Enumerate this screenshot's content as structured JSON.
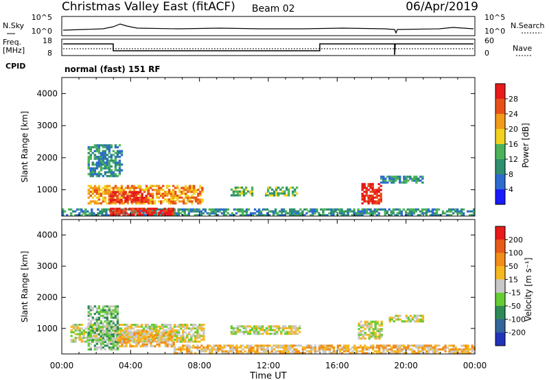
{
  "header": {
    "site": "Christmas Valley East (fitACF)",
    "beam": "Beam 02",
    "date": "06/Apr/2019"
  },
  "sky_panel": {
    "left_label": "N.Sky",
    "right_label": "N.Search",
    "left_ticks": [
      "10^5",
      "10^0"
    ],
    "right_ticks": [
      "10^5",
      "10^0"
    ]
  },
  "freq_panel": {
    "left_label_1": "Freq.",
    "left_label_2": "[MHz]",
    "right_label": "Nave",
    "left_ticks": [
      "18",
      "8"
    ],
    "right_ticks": [
      "60",
      "0"
    ]
  },
  "cpid": {
    "label": "CPID",
    "value": "normal (fast) 151 RF"
  },
  "x_axis": {
    "ticks": [
      "00:00",
      "04:00",
      "08:00",
      "12:00",
      "16:00",
      "20:00",
      "00:00"
    ],
    "title": "Time UT"
  },
  "chart_data": [
    {
      "type": "heatmap",
      "name": "power",
      "ylabel": "Slant Range [km]",
      "yticks": [
        "4000",
        "3000",
        "2000",
        "1000"
      ],
      "ylim": [
        180,
        4500
      ],
      "xlim": [
        "00:00",
        "24:00"
      ],
      "colorbar_label": "Power [dB]",
      "colorbar_ticks": [
        "28",
        "24",
        "20",
        "16",
        "12",
        "8",
        "4"
      ],
      "colors": [
        "#1a1aff",
        "#2e6bd1",
        "#2f8f6f",
        "#4cb35a",
        "#f2d21e",
        "#f29a1a",
        "#e8501a",
        "#e81a1a"
      ],
      "regions": [
        {
          "t0": 1.5,
          "t1": 8.2,
          "r0": 550,
          "r1": 1100,
          "level": 5
        },
        {
          "t0": 2.8,
          "t1": 5.2,
          "r0": 600,
          "r1": 950,
          "level": 7
        },
        {
          "t0": 0.0,
          "t1": 24.0,
          "r0": 180,
          "r1": 420,
          "level": 2
        },
        {
          "t0": 2.8,
          "t1": 6.5,
          "r0": 200,
          "r1": 400,
          "level": 7
        },
        {
          "t0": 9.8,
          "t1": 11.0,
          "r0": 800,
          "r1": 1100,
          "level": 3
        },
        {
          "t0": 11.8,
          "t1": 13.6,
          "r0": 800,
          "r1": 1100,
          "level": 3
        },
        {
          "t0": 17.4,
          "t1": 18.6,
          "r0": 550,
          "r1": 1200,
          "level": 7
        },
        {
          "t0": 18.5,
          "t1": 21.0,
          "r0": 1200,
          "r1": 1400,
          "level": 2
        },
        {
          "t0": 1.5,
          "t1": 3.5,
          "r0": 1400,
          "r1": 2400,
          "level": 2
        }
      ]
    },
    {
      "type": "heatmap",
      "name": "velocity",
      "ylabel": "Slant Range [km]",
      "yticks": [
        "4000",
        "3000",
        "2000",
        "1000"
      ],
      "ylim": [
        180,
        4500
      ],
      "xlim": [
        "00:00",
        "24:00"
      ],
      "colorbar_label": "Velocity [m s⁻¹]",
      "colorbar_ticks": [
        "200",
        "100",
        "50",
        "15",
        "-15",
        "-50",
        "-100",
        "-200"
      ],
      "colors": [
        "#2233bb",
        "#336699",
        "#2e8b57",
        "#66cc33",
        "#c8c8c8",
        "#f5b820",
        "#f28c1a",
        "#e85a1a",
        "#e81a1a"
      ],
      "regions": [
        {
          "t0": 0.5,
          "t1": 8.2,
          "r0": 550,
          "r1": 1100,
          "level": 4
        },
        {
          "t0": 1.5,
          "t1": 3.2,
          "r0": 300,
          "r1": 1700,
          "level": 3
        },
        {
          "t0": 3.2,
          "t1": 6.5,
          "r0": 400,
          "r1": 900,
          "level": 5
        },
        {
          "t0": 6.5,
          "t1": 24.0,
          "r0": 180,
          "r1": 450,
          "level": 5
        },
        {
          "t0": 9.8,
          "t1": 13.8,
          "r0": 800,
          "r1": 1100,
          "level": 4
        },
        {
          "t0": 17.2,
          "t1": 18.6,
          "r0": 650,
          "r1": 1200,
          "level": 4
        },
        {
          "t0": 19.0,
          "t1": 21.0,
          "r0": 1200,
          "r1": 1400,
          "level": 4
        }
      ]
    }
  ]
}
